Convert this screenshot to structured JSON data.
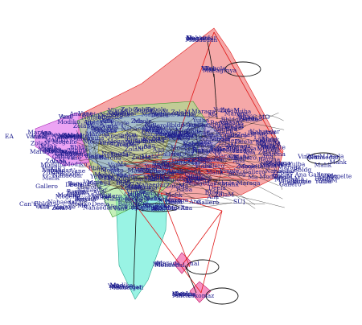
{
  "labels": {
    "kc_mo": "KC MO",
    "can_t": "Can't",
    "its_cool": "Itscool",
    "doc": "Doc",
    "ga": "GA",
    "nal": "nal",
    "budas": "budas",
    "su": "SU]",
    "ea": "EA",
    "cluster_top": "Madaddan",
    "cluster_top_sub": "Maeagfnya",
    "cluster_bottom_left": "Mahaelgeli",
    "cluster_bottom_mid": "Mohaebal",
    "cluster_bottom_right": "Mheleskomaz",
    "noise": [
      "Vane",
      "Bbldg",
      "Ma",
      "ZolaM",
      "Nahaedar",
      "Mogelte",
      "Mahk",
      "Vingle",
      "Ana",
      "Barona",
      "Modiko",
      "Deela",
      "Maraga",
      "Zebole",
      "Yuiba",
      "Gallero"
    ]
  },
  "colors": {
    "edge_red": "#e01818",
    "edge_black": "#111111",
    "label_ink": "#1a1a8c",
    "hull_red": "#f28b8b",
    "hull_cyan": "#7ff0dd",
    "hull_magenta": "#e685f0",
    "hull_green": "#9fe58a",
    "hull_blue": "#8fb3f5",
    "hull_yellow": "#e6e07a",
    "hull_pink": "#f57fb8"
  }
}
